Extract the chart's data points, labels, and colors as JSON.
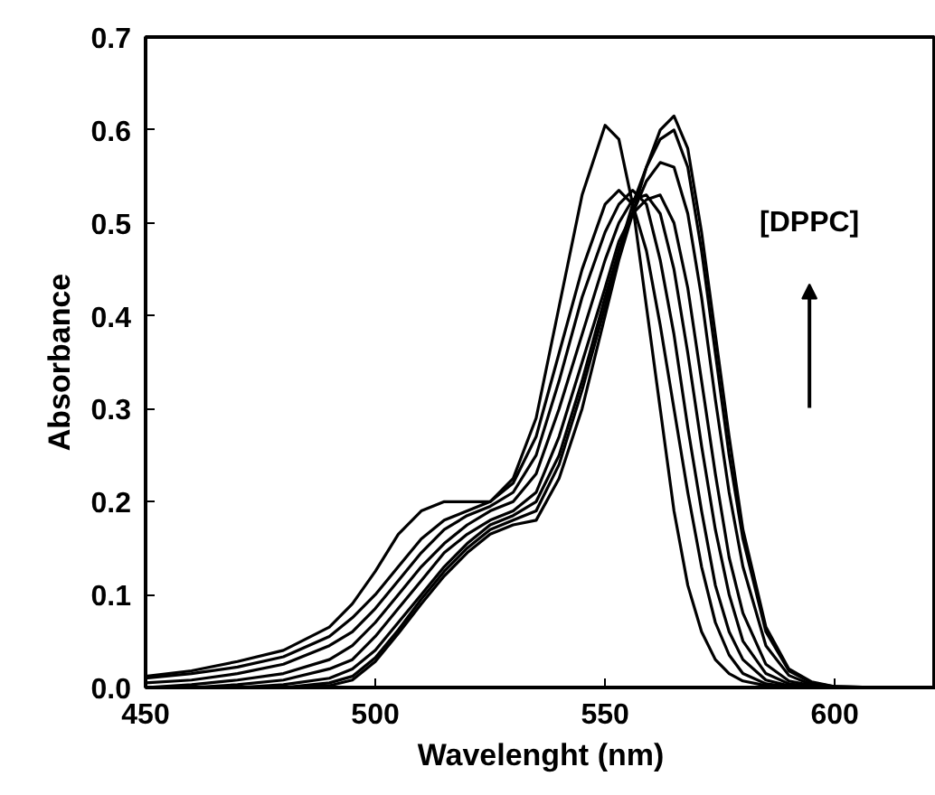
{
  "chart_data": {
    "type": "line",
    "xlabel": "Wavelenght (nm)",
    "ylabel": "Absorbance",
    "annotations": [
      "[DPPC]"
    ],
    "x": [
      450,
      460,
      470,
      480,
      490,
      495,
      500,
      505,
      510,
      515,
      520,
      525,
      530,
      535,
      540,
      545,
      550,
      553,
      556,
      559,
      562,
      565,
      568,
      571,
      574,
      577,
      580,
      585,
      590,
      595,
      600,
      610,
      622
    ],
    "xlim": [
      450,
      622
    ],
    "ylim": [
      0,
      0.7
    ],
    "xticks": [
      450,
      500,
      550,
      600
    ],
    "yticks": [
      {
        "value": 0,
        "label": "0.0"
      },
      {
        "value": 0.1,
        "label": "0.1"
      },
      {
        "value": 0.2,
        "label": "0.2"
      },
      {
        "value": 0.3,
        "label": "0.3"
      },
      {
        "value": 0.4,
        "label": "0.4"
      },
      {
        "value": 0.5,
        "label": "0.5"
      },
      {
        "value": 0.6,
        "label": "0.6"
      },
      {
        "value": 0.7,
        "label": "0.7"
      }
    ],
    "line_style": "solid",
    "series": [
      {
        "color": "#000000",
        "values": [
          0.012,
          0.018,
          0.028,
          0.04,
          0.065,
          0.09,
          0.125,
          0.165,
          0.19,
          0.2,
          0.2,
          0.2,
          0.225,
          0.29,
          0.41,
          0.53,
          0.605,
          0.59,
          0.52,
          0.41,
          0.3,
          0.19,
          0.11,
          0.06,
          0.03,
          0.015,
          0.007,
          0.002,
          0,
          0,
          0,
          0,
          0
        ]
      },
      {
        "color": "#000000",
        "values": [
          0.01,
          0.015,
          0.022,
          0.033,
          0.055,
          0.075,
          0.1,
          0.13,
          0.16,
          0.18,
          0.19,
          0.2,
          0.22,
          0.27,
          0.36,
          0.45,
          0.52,
          0.535,
          0.52,
          0.47,
          0.39,
          0.3,
          0.21,
          0.13,
          0.07,
          0.035,
          0.015,
          0.004,
          0.001,
          0,
          0,
          0,
          0
        ]
      },
      {
        "color": "#000000",
        "values": [
          0.005,
          0.008,
          0.015,
          0.025,
          0.045,
          0.06,
          0.085,
          0.115,
          0.145,
          0.17,
          0.185,
          0.195,
          0.21,
          0.25,
          0.33,
          0.42,
          0.49,
          0.52,
          0.535,
          0.52,
          0.46,
          0.38,
          0.28,
          0.19,
          0.11,
          0.06,
          0.03,
          0.008,
          0.002,
          0,
          0,
          0,
          0
        ]
      },
      {
        "color": "#000000",
        "values": [
          0,
          0.003,
          0.008,
          0.015,
          0.03,
          0.045,
          0.07,
          0.1,
          0.13,
          0.155,
          0.175,
          0.19,
          0.2,
          0.23,
          0.3,
          0.38,
          0.46,
          0.5,
          0.525,
          0.53,
          0.51,
          0.45,
          0.36,
          0.26,
          0.17,
          0.1,
          0.05,
          0.015,
          0.004,
          0.001,
          0,
          0,
          0
        ]
      },
      {
        "color": "#000000",
        "values": [
          0,
          0,
          0.003,
          0.008,
          0.02,
          0.03,
          0.055,
          0.085,
          0.115,
          0.145,
          0.165,
          0.18,
          0.19,
          0.21,
          0.27,
          0.35,
          0.43,
          0.48,
          0.51,
          0.525,
          0.53,
          0.5,
          0.43,
          0.33,
          0.23,
          0.14,
          0.08,
          0.025,
          0.007,
          0.002,
          0,
          0,
          0
        ]
      },
      {
        "color": "#000000",
        "values": [
          0,
          0,
          0,
          0.003,
          0.01,
          0.02,
          0.04,
          0.07,
          0.1,
          0.13,
          0.155,
          0.175,
          0.185,
          0.2,
          0.25,
          0.33,
          0.42,
          0.47,
          0.51,
          0.545,
          0.565,
          0.56,
          0.51,
          0.42,
          0.31,
          0.21,
          0.13,
          0.045,
          0.013,
          0.003,
          0,
          0,
          0
        ]
      },
      {
        "color": "#000000",
        "values": [
          0,
          0,
          0,
          0,
          0.005,
          0.012,
          0.032,
          0.062,
          0.095,
          0.125,
          0.15,
          0.17,
          0.18,
          0.19,
          0.24,
          0.32,
          0.41,
          0.47,
          0.52,
          0.56,
          0.59,
          0.6,
          0.56,
          0.47,
          0.36,
          0.25,
          0.16,
          0.06,
          0.018,
          0.005,
          0.001,
          0,
          0
        ]
      },
      {
        "color": "#000000",
        "values": [
          0,
          0,
          0,
          0,
          0.002,
          0.008,
          0.028,
          0.058,
          0.09,
          0.12,
          0.145,
          0.165,
          0.175,
          0.18,
          0.225,
          0.3,
          0.4,
          0.46,
          0.51,
          0.56,
          0.6,
          0.615,
          0.58,
          0.49,
          0.38,
          0.27,
          0.17,
          0.065,
          0.02,
          0.006,
          0.001,
          0,
          0
        ]
      }
    ]
  }
}
